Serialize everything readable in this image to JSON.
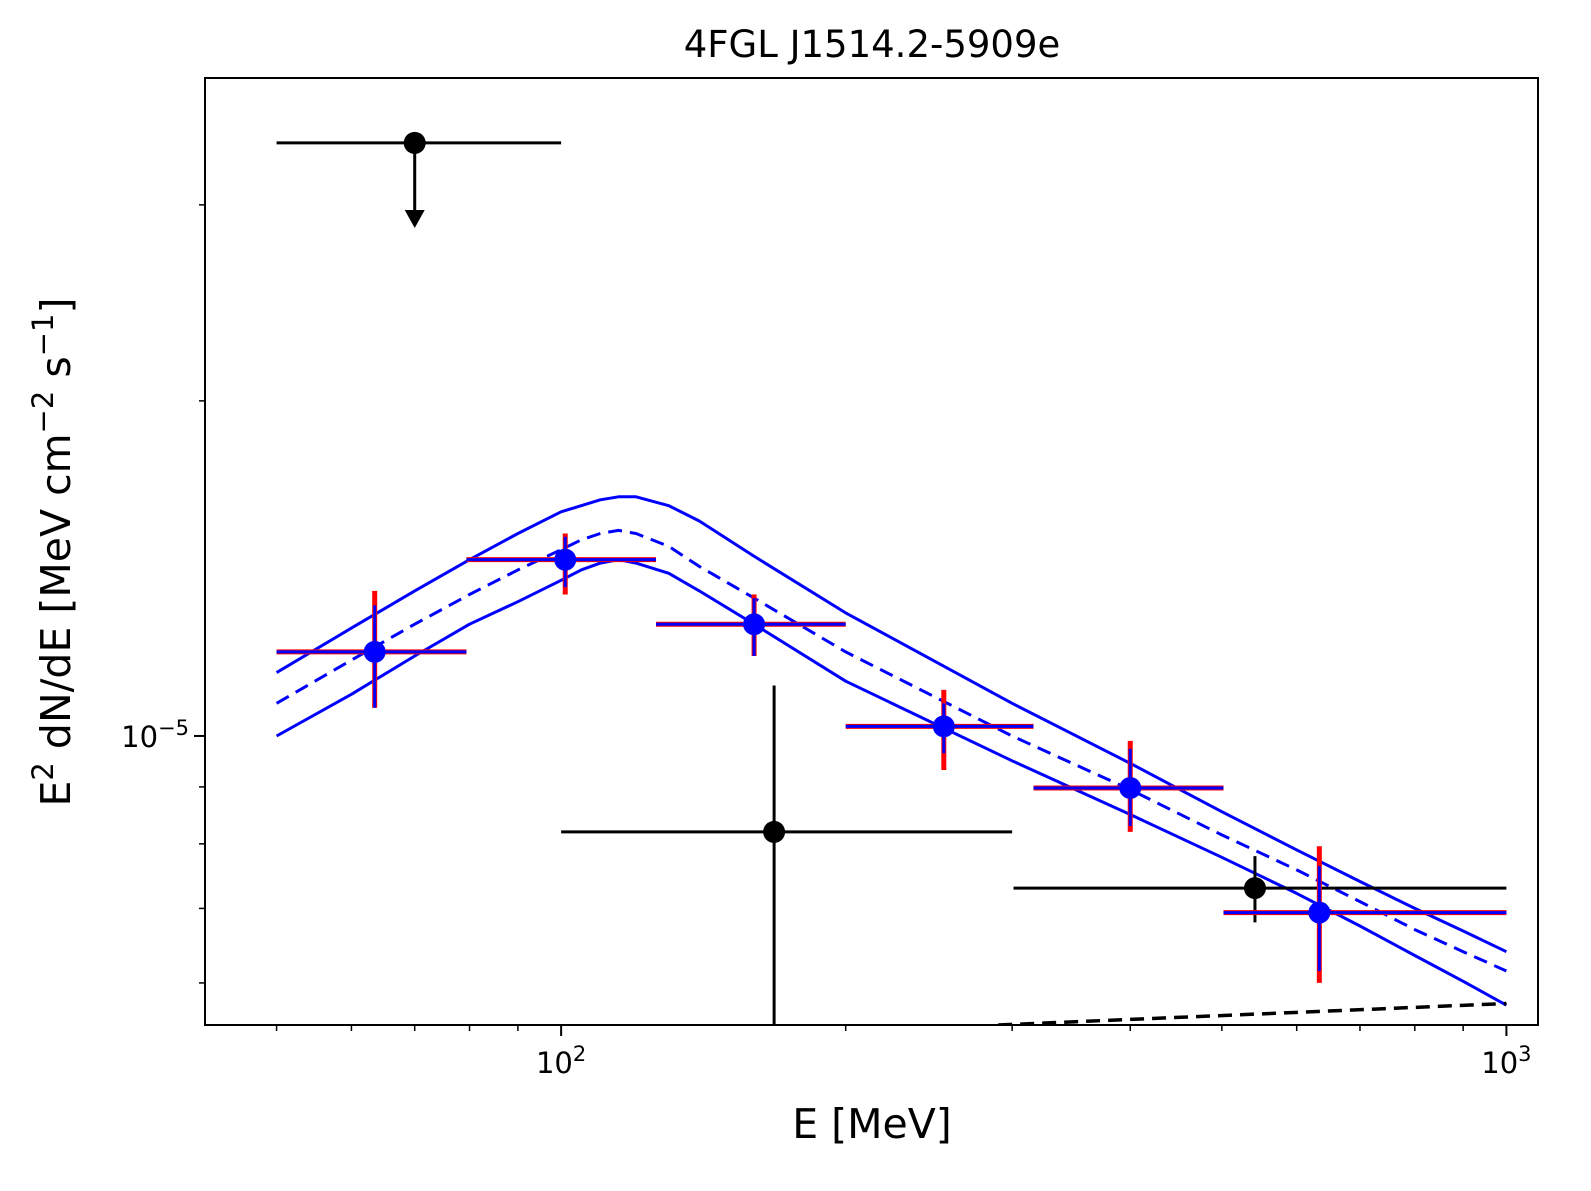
{
  "chart_data": {
    "type": "scatter",
    "title": "4FGL J1514.2-5909e",
    "xlabel": "E [MeV]",
    "ylabel": "E$^2$ dN/dE [MeV cm$^{-2}$ s$^{-1}$]",
    "xscale": "log",
    "yscale": "log",
    "xlim": [
      42,
      1080
    ],
    "ylim": [
      5.5e-06,
      3.9e-05
    ],
    "grid": false,
    "legend": "none",
    "x_ticks": [
      {
        "value": 100,
        "base": "10",
        "exp": "2"
      },
      {
        "value": 1000,
        "base": "10",
        "exp": "3"
      }
    ],
    "y_ticks": [
      {
        "value": 1e-05,
        "base": "10",
        "exp": "−5"
      }
    ],
    "x_minor_ticks": [
      50,
      60,
      70,
      80,
      90,
      200,
      300,
      400,
      500,
      600,
      700,
      800,
      900
    ],
    "y_minor_ticks": [
      6e-06,
      7e-06,
      8e-06,
      9e-06,
      2e-05,
      3e-05
    ],
    "colors": {
      "model": "#0000ff",
      "points": "#0000ff",
      "sys_error": "#ff0000",
      "other": "#000000",
      "axes": "#000000"
    },
    "series": [
      {
        "style": "blue-points",
        "points": [
          {
            "x": 63.5,
            "y": 1.19e-05,
            "xerr": [
              50,
              79.4
            ],
            "yerr": [
              1.06e-05,
              1.31e-05
            ],
            "sys_yerr": [
              1.06e-05,
              1.35e-05
            ]
          },
          {
            "x": 101,
            "y": 1.44e-05,
            "xerr": [
              79.4,
              126
            ],
            "yerr": [
              1.36e-05,
              1.51e-05
            ],
            "sys_yerr": [
              1.34e-05,
              1.52e-05
            ]
          },
          {
            "x": 160,
            "y": 1.26e-05,
            "xerr": [
              126,
              200
            ],
            "yerr": [
              1.18e-05,
              1.33e-05
            ],
            "sys_yerr": [
              1.18e-05,
              1.34e-05
            ]
          },
          {
            "x": 254,
            "y": 1.02e-05,
            "xerr": [
              200,
              316
            ],
            "yerr": [
              9.65e-06,
              1.07e-05
            ],
            "sys_yerr": [
              9.32e-06,
              1.1e-05
            ]
          },
          {
            "x": 400,
            "y": 8.98e-06,
            "xerr": [
              316,
              502
            ],
            "yerr": [
              8.3e-06,
              9.74e-06
            ],
            "sys_yerr": [
              8.2e-06,
              9.9e-06
            ]
          },
          {
            "x": 634,
            "y": 6.94e-06,
            "xerr": [
              502,
              1000
            ],
            "yerr": [
              6.15e-06,
              7.64e-06
            ],
            "sys_yerr": [
              6e-06,
              7.96e-06
            ]
          }
        ]
      },
      {
        "style": "black-points",
        "points": [
          {
            "x": 70,
            "y": 3.41e-05,
            "xerr": [
              50,
              100
            ],
            "upper_limit": true,
            "arrow_to": 2.86e-05
          },
          {
            "x": 168,
            "y": 8.2e-06,
            "xerr": [
              100,
              300
            ],
            "yerr": [
              5.5e-06,
              1.11e-05
            ]
          },
          {
            "x": 542,
            "y": 7.3e-06,
            "xerr": [
              301,
              1000
            ],
            "yerr": [
              6.8e-06,
              7.8e-06
            ]
          }
        ]
      },
      {
        "style": "blue-dashed-model",
        "x": [
          50,
          60,
          70,
          80,
          90,
          100,
          105,
          110,
          115,
          120,
          130,
          140,
          160,
          200,
          300,
          400,
          500,
          600,
          700,
          800,
          900,
          1000
        ],
        "y": [
          1.07e-05,
          1.17e-05,
          1.26e-05,
          1.34e-05,
          1.41e-05,
          1.47e-05,
          1.5e-05,
          1.52e-05,
          1.53e-05,
          1.52e-05,
          1.48e-05,
          1.42e-05,
          1.33e-05,
          1.19e-05,
          1e-05,
          8.95e-06,
          8.15e-06,
          7.58e-06,
          7.1e-06,
          6.7e-06,
          6.4e-06,
          6.15e-06
        ]
      },
      {
        "style": "blue-solid-band-upper",
        "x": [
          50,
          60,
          70,
          80,
          90,
          100,
          105,
          110,
          115,
          120,
          130,
          140,
          160,
          200,
          300,
          400,
          500,
          600,
          700,
          800,
          900,
          1000
        ],
        "y": [
          1.14e-05,
          1.25e-05,
          1.35e-05,
          1.44e-05,
          1.52e-05,
          1.59e-05,
          1.61e-05,
          1.63e-05,
          1.64e-05,
          1.64e-05,
          1.61e-05,
          1.56e-05,
          1.45e-05,
          1.29e-05,
          1.07e-05,
          9.45e-06,
          8.55e-06,
          7.9e-06,
          7.4e-06,
          7e-06,
          6.68e-06,
          6.4e-06
        ]
      },
      {
        "style": "blue-solid-band-lower",
        "x": [
          50,
          60,
          70,
          80,
          90,
          100,
          105,
          110,
          115,
          120,
          130,
          140,
          160,
          200,
          300,
          400,
          500,
          600,
          700,
          800,
          900,
          1000
        ],
        "y": [
          1e-05,
          1.09e-05,
          1.18e-05,
          1.26e-05,
          1.32e-05,
          1.38e-05,
          1.41e-05,
          1.43e-05,
          1.44e-05,
          1.43e-05,
          1.4e-05,
          1.35e-05,
          1.26e-05,
          1.12e-05,
          9.5e-06,
          8.5e-06,
          7.78e-06,
          7.22e-06,
          6.75e-06,
          6.35e-06,
          6.02e-06,
          5.73e-06
        ]
      },
      {
        "style": "black-dashed-line",
        "x": [
          290,
          1000
        ],
        "y": [
          5.5e-06,
          5.75e-06
        ]
      }
    ]
  }
}
